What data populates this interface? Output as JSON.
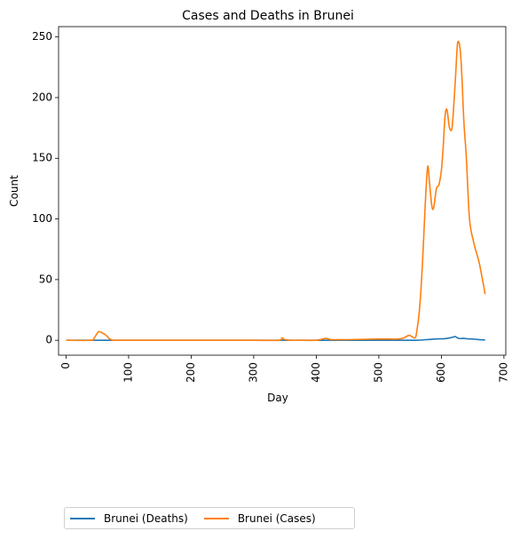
{
  "chart_data": {
    "type": "line",
    "title": "Cases and Deaths in Brunei",
    "xlabel": "Day",
    "ylabel": "Count",
    "xlim": [
      -12,
      703
    ],
    "ylim": [
      -12.3,
      258.5
    ],
    "xticks": [
      0,
      100,
      200,
      300,
      400,
      500,
      600,
      700
    ],
    "yticks": [
      0,
      50,
      100,
      150,
      200,
      250
    ],
    "legend_position": "bottom-left outside",
    "series": [
      {
        "name": "Brunei (Deaths)",
        "color": "#1f77b4",
        "x": [
          0,
          100,
          200,
          300,
          400,
          500,
          560,
          575,
          590,
          605,
          612,
          618,
          622,
          628,
          635,
          642,
          650,
          660,
          670
        ],
        "y": [
          0,
          0,
          0,
          0,
          0,
          0,
          0,
          0.5,
          1,
          1.3,
          1.8,
          2.5,
          3,
          1.5,
          1.5,
          1.2,
          1,
          0.6,
          0.2
        ]
      },
      {
        "name": "Brunei (Cases)",
        "color": "#ff7f0e",
        "x": [
          0,
          40,
          45,
          52,
          58,
          64,
          70,
          75,
          80,
          100,
          200,
          300,
          340,
          345,
          350,
          360,
          380,
          400,
          415,
          420,
          425,
          450,
          500,
          530,
          540,
          548,
          553,
          557,
          560,
          565,
          570,
          574,
          578,
          581,
          585,
          588,
          592,
          596,
          600,
          603,
          606,
          609,
          613,
          617,
          620,
          623,
          626,
          630,
          633,
          636,
          640,
          645,
          652,
          660,
          665,
          670
        ],
        "y": [
          0,
          0,
          2,
          7,
          6,
          4,
          1,
          0,
          0,
          0,
          0,
          0,
          0,
          2,
          0.5,
          0,
          0,
          0,
          1.5,
          1,
          0.5,
          0.5,
          1,
          1,
          2,
          4,
          3,
          2,
          5,
          25,
          65,
          110,
          143,
          130,
          110,
          110,
          125,
          128,
          140,
          160,
          185,
          190,
          175,
          175,
          195,
          220,
          245,
          240,
          215,
          180,
          150,
          100,
          80,
          65,
          52,
          38
        ]
      }
    ]
  }
}
